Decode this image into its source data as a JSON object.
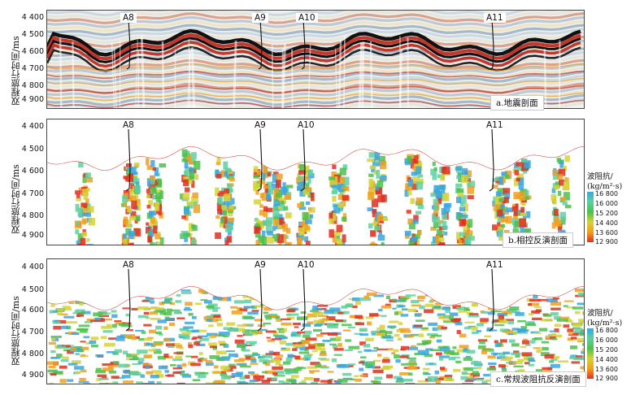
{
  "figure": {
    "ylabel": "双程旅行时间/ms",
    "yticks": [
      "4 400",
      "4 500",
      "4 600",
      "4 700",
      "4 800",
      "4 900"
    ],
    "wells": [
      "A8",
      "A9",
      "A10",
      "A11"
    ]
  },
  "panels": [
    {
      "id": "a",
      "caption": "a.地震剖面"
    },
    {
      "id": "b",
      "caption": "b.相控反演剖面"
    },
    {
      "id": "c",
      "caption": "c.常规波阻抗反演剖面"
    }
  ],
  "legend": {
    "title_line1": "波阻抗/",
    "title_line2": "(kg/m²·s)",
    "ticks": [
      "16 800",
      "16 000",
      "15 200",
      "14 400",
      "13 600",
      "12 900"
    ],
    "colors": [
      "#3aa6e0",
      "#5fd0a0",
      "#4cc04c",
      "#d6d23a",
      "#f0a020",
      "#e03020"
    ]
  }
}
